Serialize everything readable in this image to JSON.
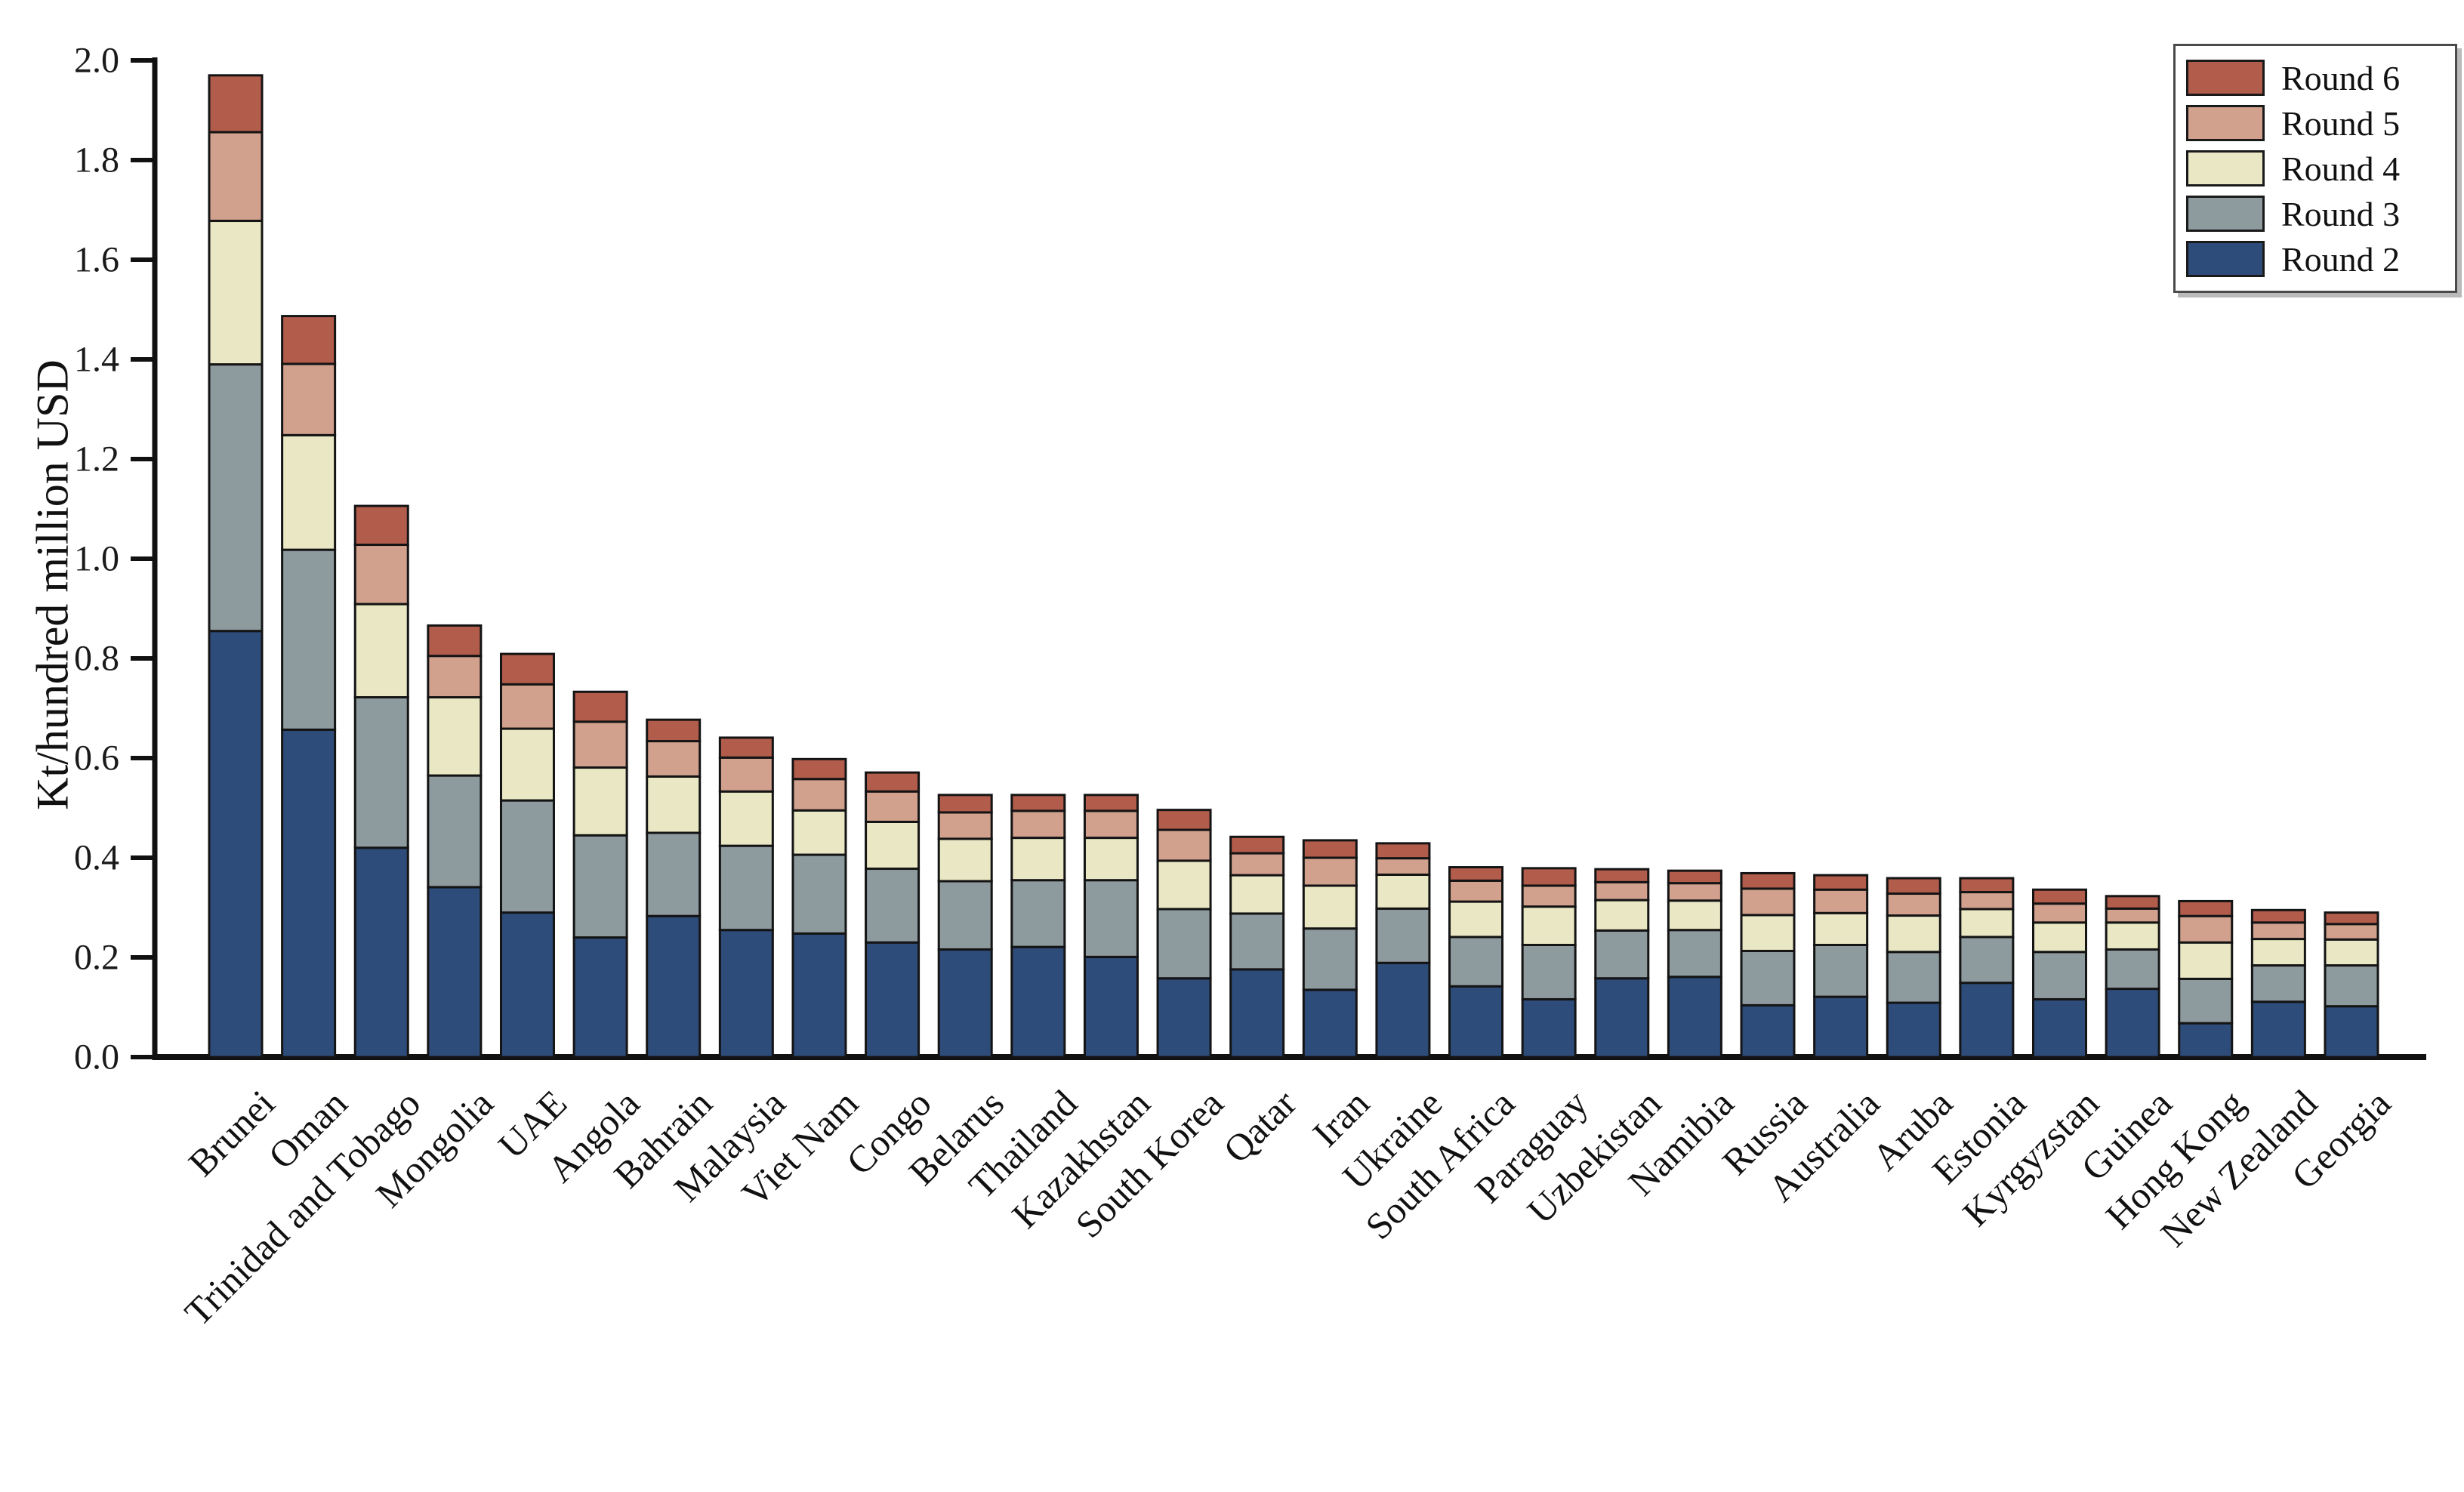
{
  "chart_data": {
    "type": "bar",
    "stacked": true,
    "title": "",
    "xlabel": "",
    "ylabel": "Kt/hundred million USD",
    "ylim": [
      0.0,
      2.0
    ],
    "grid": false,
    "legend_position": "top-right",
    "yticks": [
      {
        "label": "0.0",
        "value": 0.0
      },
      {
        "label": "0.2",
        "value": 0.2
      },
      {
        "label": "0.4",
        "value": 0.4
      },
      {
        "label": "0.6",
        "value": 0.6
      },
      {
        "label": "0.8",
        "value": 0.8
      },
      {
        "label": "1.0",
        "value": 1.0
      },
      {
        "label": "1.2",
        "value": 1.2
      },
      {
        "label": "1.4",
        "value": 1.4
      },
      {
        "label": "1.6",
        "value": 1.6
      },
      {
        "label": "1.8",
        "value": 1.8
      },
      {
        "label": "2.0",
        "value": 2.0
      }
    ],
    "categories": [
      "Brunei",
      "Oman",
      "Trinidad and Tobago",
      "Mongolia",
      "UAE",
      "Angola",
      "Bahrain",
      "Malaysia",
      "Viet Nam",
      "Congo",
      "Belarus",
      "Thailand",
      "Kazakhstan",
      "South Korea",
      "Qatar",
      "Iran",
      "Ukraine",
      "South Africa",
      "Paraguay",
      "Uzbekistan",
      "Namibia",
      "Russia",
      "Australia",
      "Aruba",
      "Estonia",
      "Kyrgyzstan",
      "Guinea",
      "Hong Kong",
      "New Zealand",
      "Georgia"
    ],
    "series": [
      {
        "name": "Round 2",
        "color": "#2e4c7a",
        "values": [
          0.855,
          0.657,
          0.42,
          0.341,
          0.29,
          0.24,
          0.283,
          0.255,
          0.248,
          0.23,
          0.216,
          0.221,
          0.201,
          0.158,
          0.176,
          0.135,
          0.189,
          0.142,
          0.116,
          0.158,
          0.161,
          0.104,
          0.121,
          0.109,
          0.149,
          0.116,
          0.137,
          0.068,
          0.111,
          0.102
        ]
      },
      {
        "name": "Round 3",
        "color": "#8d9a9e",
        "values": [
          0.535,
          0.361,
          0.302,
          0.224,
          0.225,
          0.205,
          0.167,
          0.169,
          0.158,
          0.148,
          0.137,
          0.134,
          0.154,
          0.139,
          0.112,
          0.123,
          0.109,
          0.099,
          0.109,
          0.096,
          0.094,
          0.109,
          0.104,
          0.102,
          0.092,
          0.095,
          0.079,
          0.089,
          0.073,
          0.082
        ]
      },
      {
        "name": "Round 4",
        "color": "#eae8c4",
        "values": [
          0.288,
          0.23,
          0.187,
          0.157,
          0.144,
          0.136,
          0.113,
          0.109,
          0.089,
          0.094,
          0.085,
          0.085,
          0.085,
          0.097,
          0.077,
          0.086,
          0.068,
          0.071,
          0.077,
          0.061,
          0.059,
          0.072,
          0.064,
          0.073,
          0.056,
          0.059,
          0.054,
          0.073,
          0.053,
          0.052
        ]
      },
      {
        "name": "Round 5",
        "color": "#d2a18e",
        "values": [
          0.178,
          0.143,
          0.119,
          0.083,
          0.089,
          0.092,
          0.071,
          0.068,
          0.063,
          0.061,
          0.053,
          0.054,
          0.054,
          0.062,
          0.044,
          0.056,
          0.033,
          0.042,
          0.042,
          0.036,
          0.035,
          0.053,
          0.047,
          0.044,
          0.034,
          0.038,
          0.028,
          0.053,
          0.033,
          0.031
        ]
      },
      {
        "name": "Round 6",
        "color": "#b25c4c",
        "values": [
          0.114,
          0.096,
          0.078,
          0.061,
          0.061,
          0.06,
          0.043,
          0.04,
          0.04,
          0.038,
          0.035,
          0.032,
          0.032,
          0.04,
          0.033,
          0.035,
          0.03,
          0.027,
          0.035,
          0.026,
          0.025,
          0.031,
          0.029,
          0.031,
          0.028,
          0.028,
          0.025,
          0.03,
          0.025,
          0.023
        ]
      }
    ],
    "legend_order": [
      "Round 6",
      "Round 5",
      "Round 4",
      "Round 3",
      "Round 2"
    ],
    "bar_edge_color": "#141414",
    "axis_color": "#111111"
  },
  "layout_note": "stacked vertical bars, serif fonts, x labels rotated 45 degrees"
}
